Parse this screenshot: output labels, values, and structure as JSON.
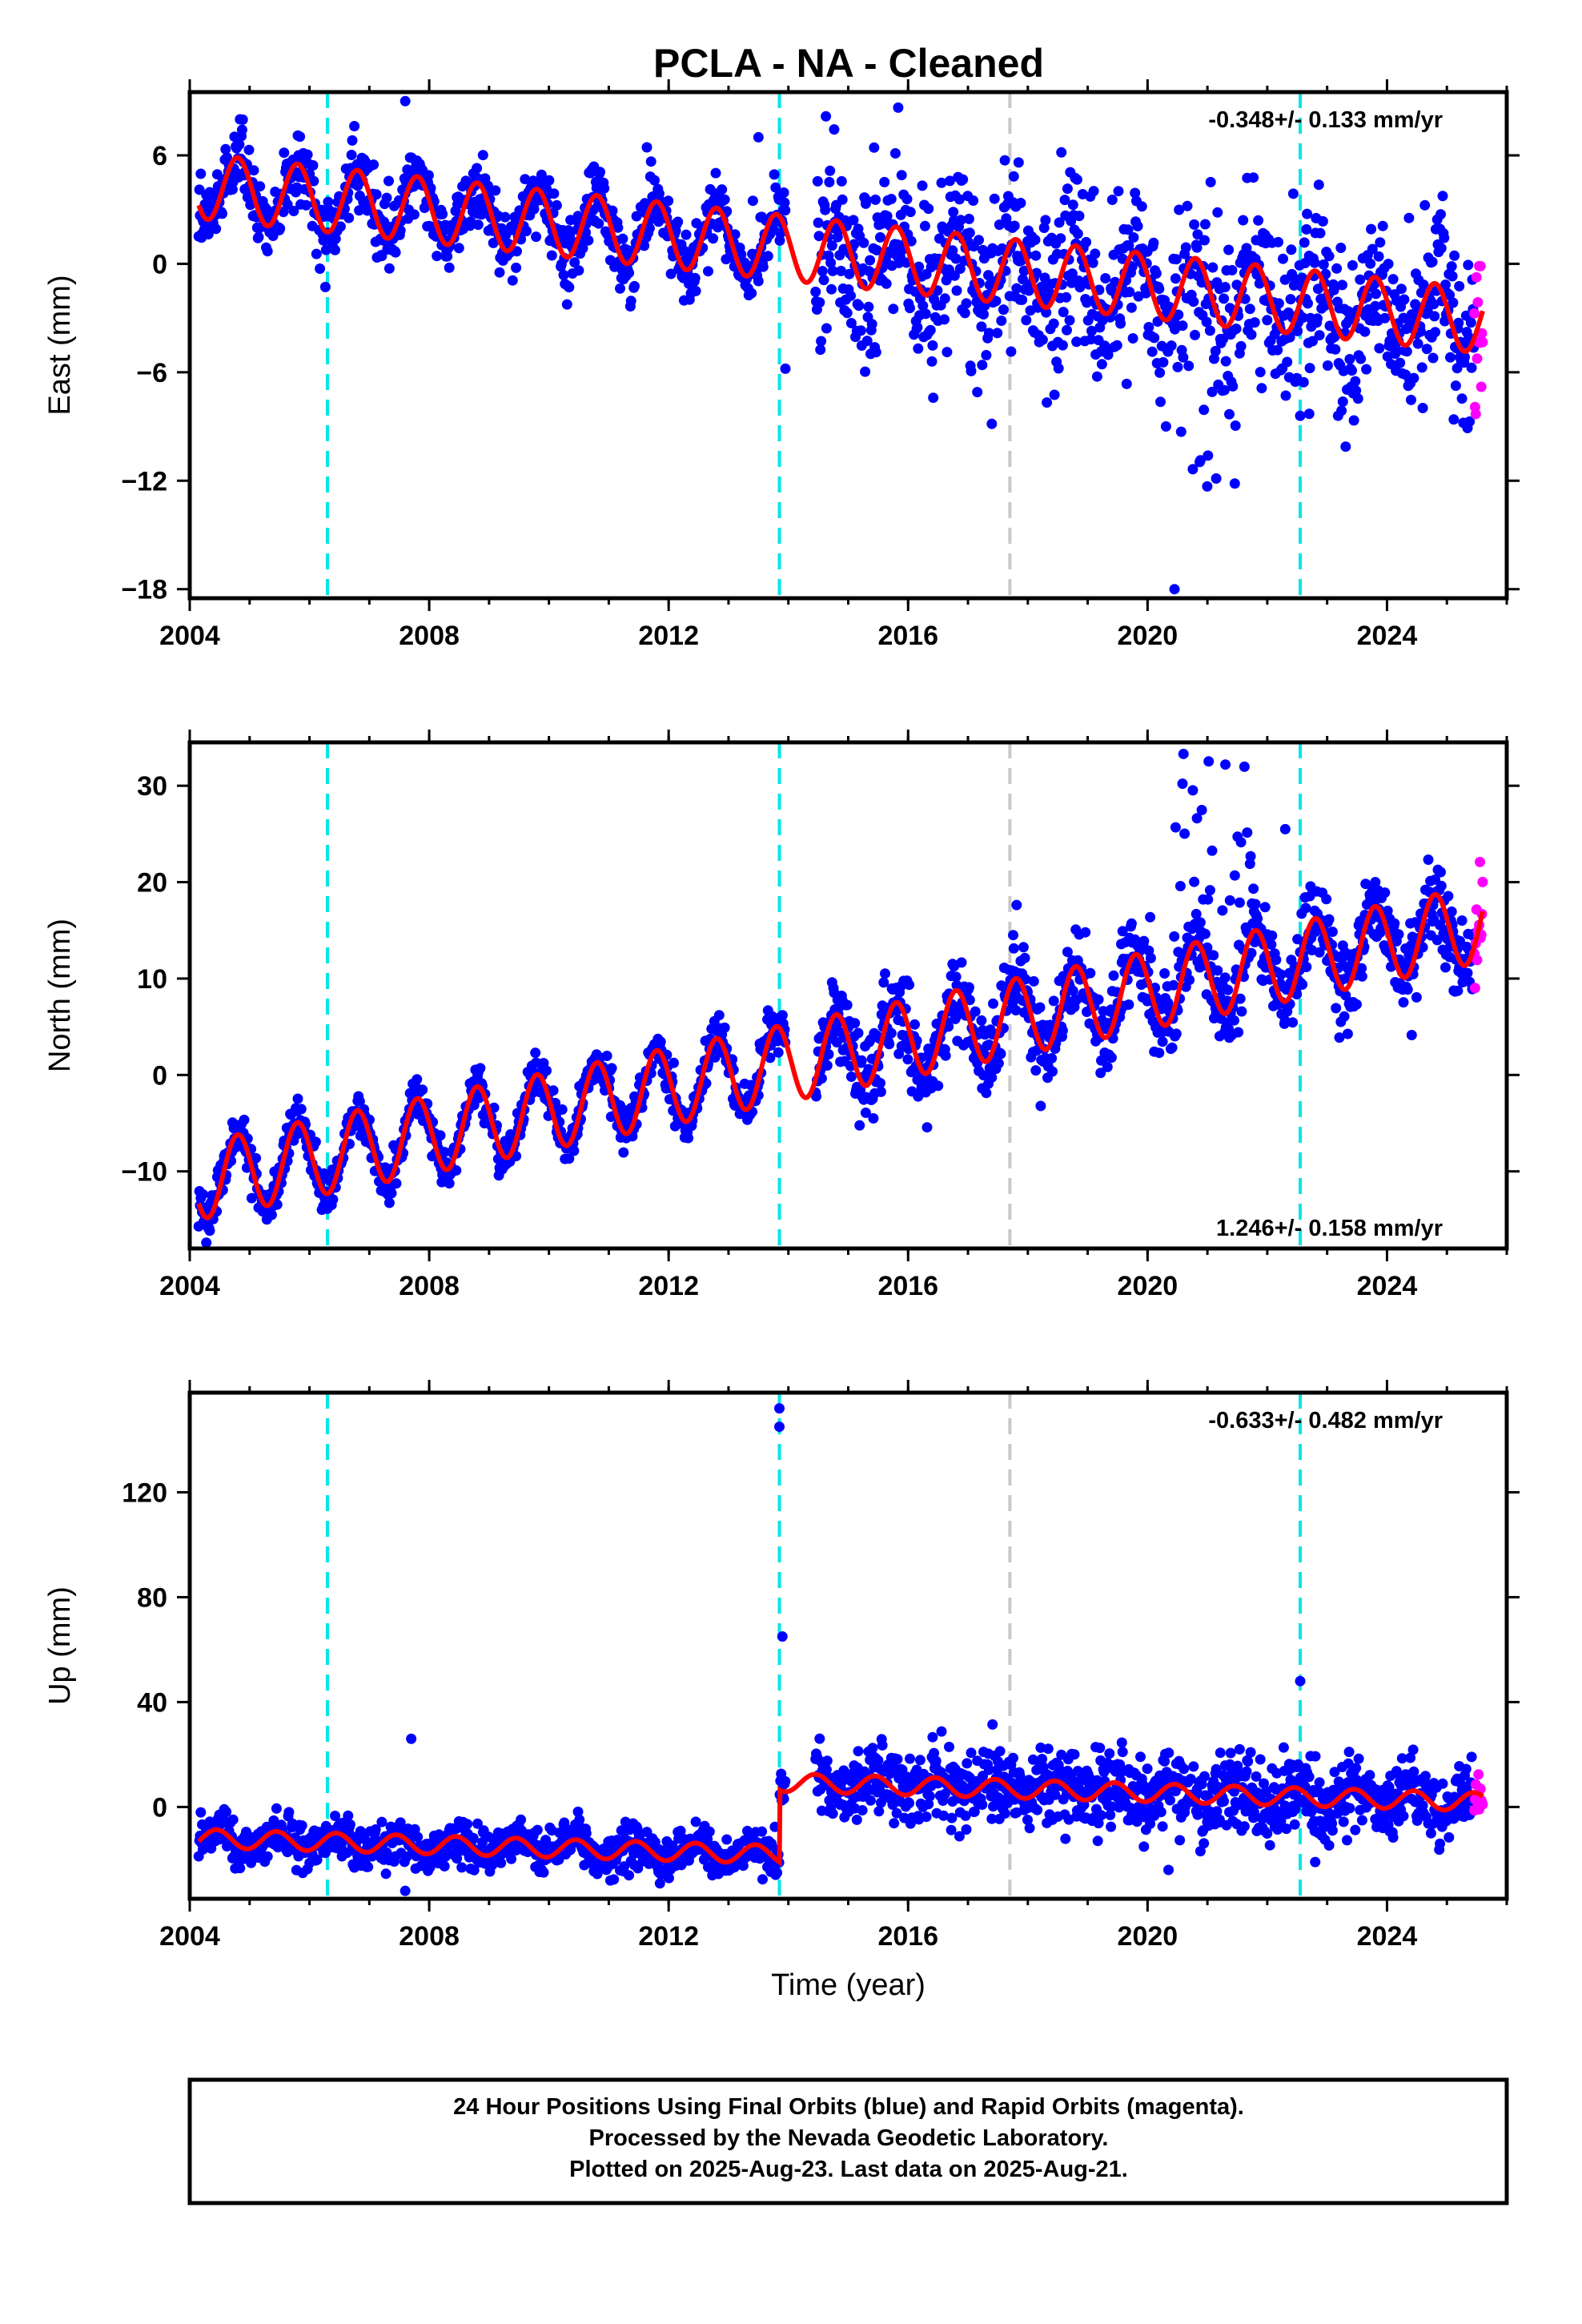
{
  "title": "PCLA  - NA - Cleaned",
  "footer": {
    "line1": "24 Hour Positions Using Final Orbits (blue) and Rapid Orbits (magenta).",
    "line2": "Processed by the Nevada Geodetic Laboratory.",
    "line3": "Plotted on 2025-Aug-23. Last data on 2025-Aug-21."
  },
  "colors": {
    "final": "#0000ff",
    "rapid": "#ff00ff",
    "model": "#ff0000",
    "equipment_change": "#00e6e6",
    "other_event": "#c8c8c8"
  },
  "chart_data": [
    {
      "type": "scatter",
      "component": "East",
      "ylabel": "East (mm)",
      "xlabel": "",
      "xlim": [
        2004.0,
        2026.0
      ],
      "ylim": [
        -18.5,
        9.5
      ],
      "yticks": [
        6,
        0,
        -6,
        -12,
        -18
      ],
      "xticks": [
        2004,
        2008,
        2012,
        2016,
        2020,
        2024
      ],
      "rate": "-0.348+/- 0.133 mm/yr",
      "rate_position": "top-right",
      "events": [
        {
          "x": 2006.3,
          "kind": "equipment"
        },
        {
          "x": 2013.85,
          "kind": "equipment"
        },
        {
          "x": 2017.7,
          "kind": "other"
        },
        {
          "x": 2022.55,
          "kind": "equipment"
        }
      ],
      "data_range": [
        2004.15,
        2025.6
      ],
      "model": {
        "offset": 4.3,
        "trend": -0.348,
        "amp": 1.8,
        "phase": 0.55,
        "tight_scatter": 1.3,
        "loose_scatter": 3.2
      },
      "jumps": [],
      "anomaly": {
        "x0": 2020.3,
        "x1": 2021.5,
        "center": -10.5,
        "spread": 3.5
      },
      "outliers": [
        {
          "x": 2007.6,
          "y": 9.0
        },
        {
          "x": 2013.5,
          "y": 7.0
        },
        {
          "x": 2013.95,
          "y": -5.8
        },
        {
          "x": 2022.7,
          "y": -8.3
        },
        {
          "x": 2020.45,
          "y": -18.0
        }
      ]
    },
    {
      "type": "scatter",
      "component": "North",
      "ylabel": "North (mm)",
      "xlabel": "",
      "xlim": [
        2004.0,
        2026.0
      ],
      "ylim": [
        -18.0,
        34.5
      ],
      "yticks": [
        30,
        20,
        10,
        0,
        -10
      ],
      "xticks": [
        2004,
        2008,
        2012,
        2016,
        2020,
        2024
      ],
      "rate": "1.246+/- 0.158 mm/yr",
      "rate_position": "bottom-right",
      "events": [
        {
          "x": 2006.3,
          "kind": "equipment"
        },
        {
          "x": 2013.85,
          "kind": "equipment"
        },
        {
          "x": 2017.7,
          "kind": "other"
        },
        {
          "x": 2022.55,
          "kind": "equipment"
        }
      ],
      "data_range": [
        2004.15,
        2025.6
      ],
      "model": {
        "offset": -11.0,
        "trend": 1.246,
        "amp": 4.0,
        "phase": 0.55,
        "tight_scatter": 1.5,
        "loose_scatter": 3.0
      },
      "jumps": [],
      "anomaly": {
        "x0": 2020.4,
        "x1": 2021.8,
        "center": 20.0,
        "spread": 6.5
      },
      "outliers": [
        {
          "x": 2020.6,
          "y": 33.3
        },
        {
          "x": 2021.3,
          "y": 32.2
        },
        {
          "x": 2022.3,
          "y": 25.5
        }
      ]
    },
    {
      "type": "scatter",
      "component": "Up",
      "ylabel": "Up (mm)",
      "xlabel": "Time (year)",
      "xlim": [
        2004.0,
        2026.0
      ],
      "ylim": [
        -35.0,
        158.0
      ],
      "yticks": [
        120,
        80,
        40,
        0
      ],
      "xticks": [
        2004,
        2008,
        2012,
        2016,
        2020,
        2024
      ],
      "rate": "-0.633+/- 0.482 mm/yr",
      "rate_position": "top-right",
      "events": [
        {
          "x": 2006.3,
          "kind": "equipment"
        },
        {
          "x": 2013.85,
          "kind": "equipment"
        },
        {
          "x": 2017.7,
          "kind": "other"
        },
        {
          "x": 2022.55,
          "kind": "equipment"
        }
      ],
      "data_range": [
        2004.15,
        2025.6
      ],
      "model": {
        "offset": -12.0,
        "trend": -0.633,
        "amp": 3.5,
        "phase": 0.2,
        "tight_scatter": 5.5,
        "loose_scatter": 9.0
      },
      "jumps": [
        {
          "x": 2013.85,
          "size": 27.5
        }
      ],
      "anomaly": null,
      "outliers": [
        {
          "x": 2013.85,
          "y": 152.0
        },
        {
          "x": 2013.85,
          "y": 145.0
        },
        {
          "x": 2013.9,
          "y": 65.0
        },
        {
          "x": 2022.55,
          "y": 48.0
        },
        {
          "x": 2007.7,
          "y": 26.0
        },
        {
          "x": 2007.6,
          "y": -32.0
        },
        {
          "x": 2022.8,
          "y": -21.0
        },
        {
          "x": 2020.35,
          "y": -24.0
        }
      ]
    }
  ]
}
